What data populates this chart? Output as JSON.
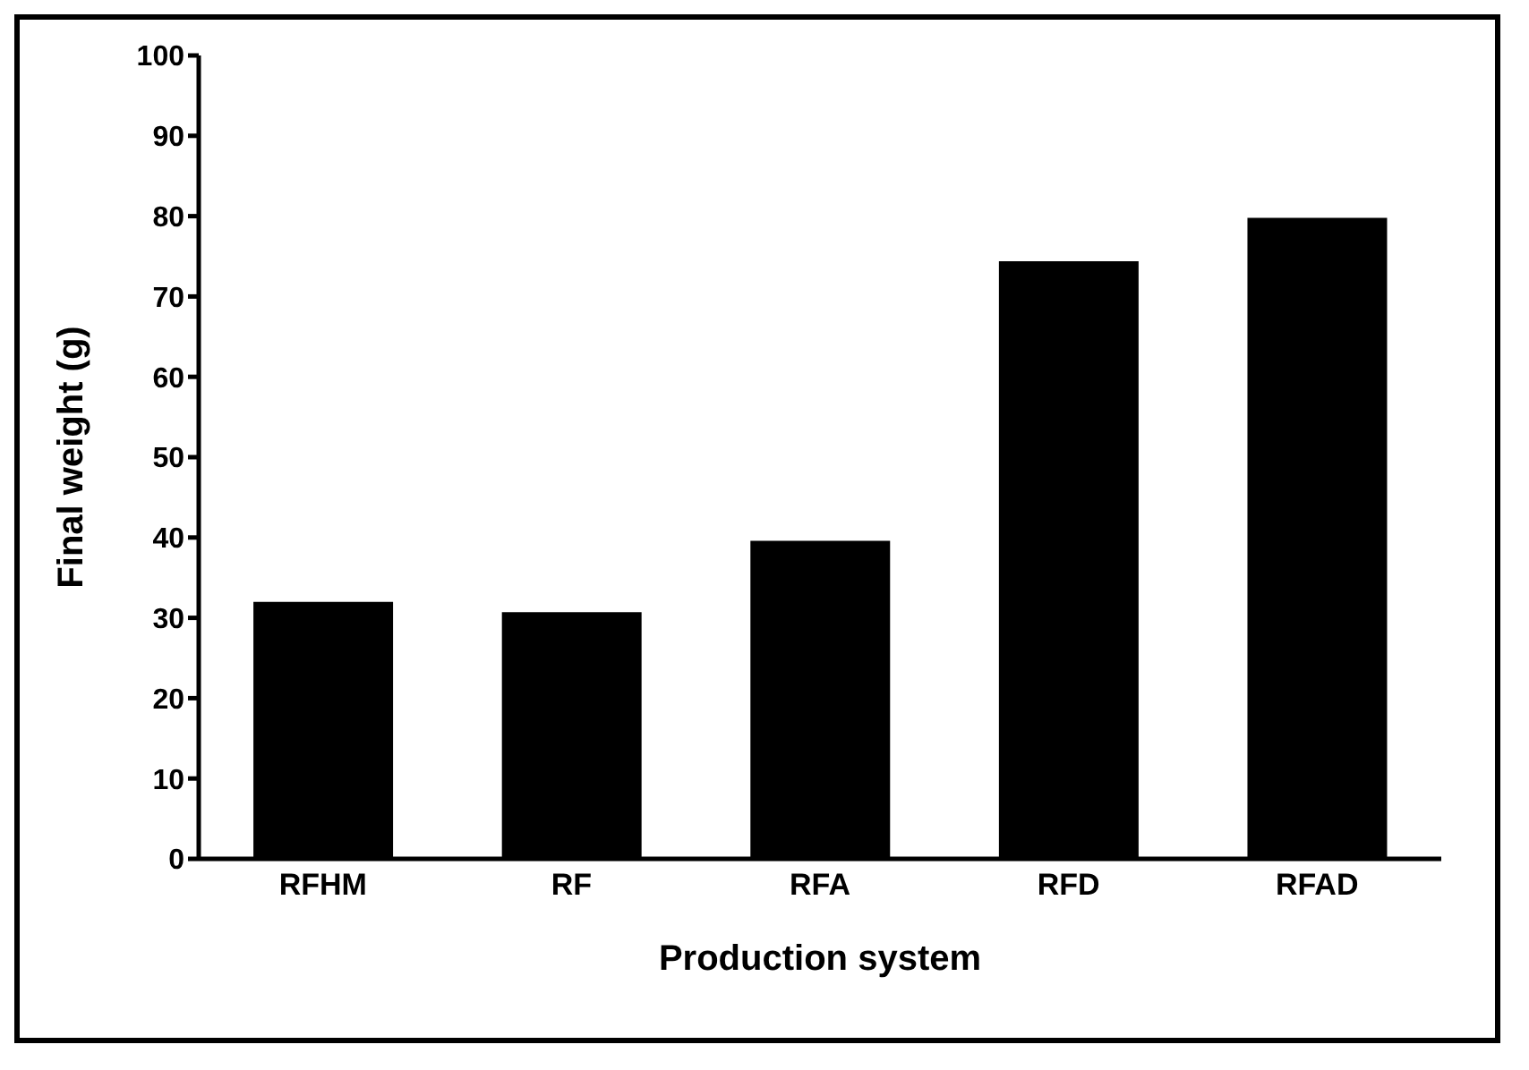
{
  "chart_data": {
    "type": "bar",
    "xlabel": "Production system",
    "ylabel": "Final weight (g)",
    "categories": [
      "RFHM",
      "RF",
      "RFA",
      "RFD",
      "RFAD"
    ],
    "values": [
      32,
      30.7,
      39.6,
      74.4,
      79.8
    ],
    "color": "#000000",
    "ylim": [
      0,
      100
    ],
    "yticks": [
      0,
      10,
      20,
      30,
      40,
      50,
      60,
      70,
      80,
      90,
      100
    ],
    "grid": false
  }
}
